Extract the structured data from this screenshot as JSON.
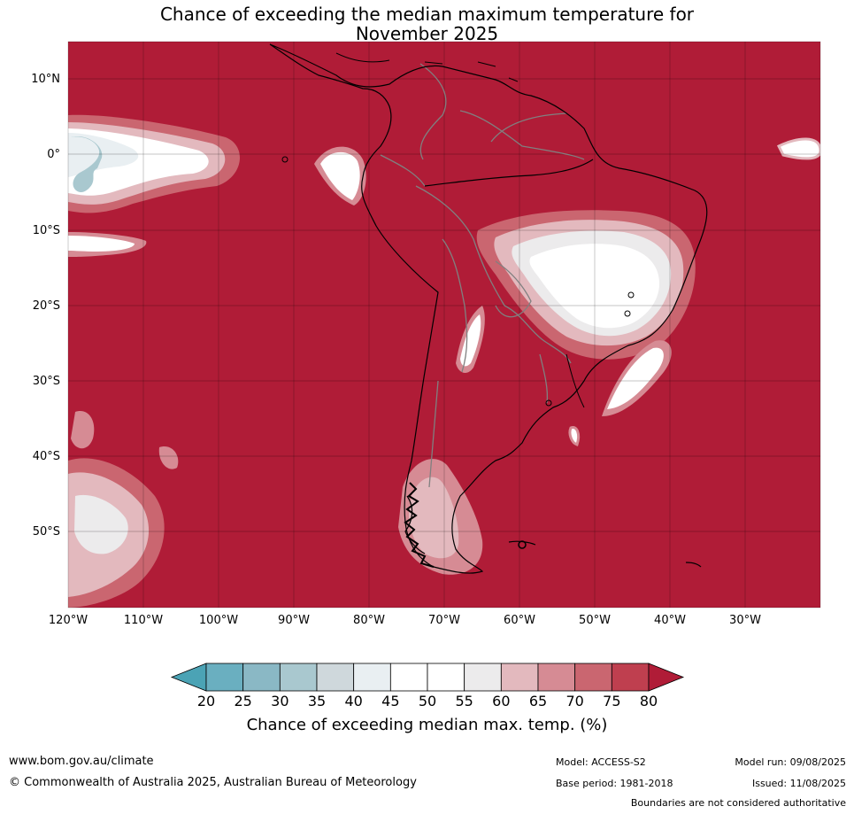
{
  "title_line1": "Chance of exceeding the median maximum temperature for",
  "title_line2": "November 2025",
  "lat_labels": [
    "10°N",
    "0°",
    "10°S",
    "20°S",
    "30°S",
    "40°S",
    "50°S"
  ],
  "lon_labels": [
    "120°W",
    "110°W",
    "100°W",
    "90°W",
    "80°W",
    "70°W",
    "60°W",
    "50°W",
    "40°W",
    "30°W"
  ],
  "legend": {
    "ticks": [
      "20",
      "25",
      "30",
      "35",
      "40",
      "45",
      "50",
      "55",
      "60",
      "65",
      "70",
      "75",
      "80"
    ],
    "colors": [
      "#4ba3b5",
      "#6aafc0",
      "#8ab8c5",
      "#a9c8cf",
      "#cfd8dc",
      "#e9eff2",
      "#ffffff",
      "#ffffff",
      "#ecebec",
      "#e3b9be",
      "#d68b94",
      "#ca6670",
      "#bf3f4f",
      "#b01c37"
    ],
    "label": "Chance of exceeding median max. temp. (%)"
  },
  "colors": {
    "base_fill": "#b01c37",
    "country_border": "#808080",
    "coast": "#000000"
  },
  "footer": {
    "url": "www.bom.gov.au/climate",
    "copyright": "© Commonwealth of Australia 2025, Australian Bureau of Meteorology",
    "model": "Model: ACCESS-S2",
    "base_period": "Base period: 1981-2018",
    "model_run": "Model run: 09/08/2025",
    "issued": "Issued: 11/08/2025",
    "boundaries": "Boundaries are not considered authoritative"
  }
}
